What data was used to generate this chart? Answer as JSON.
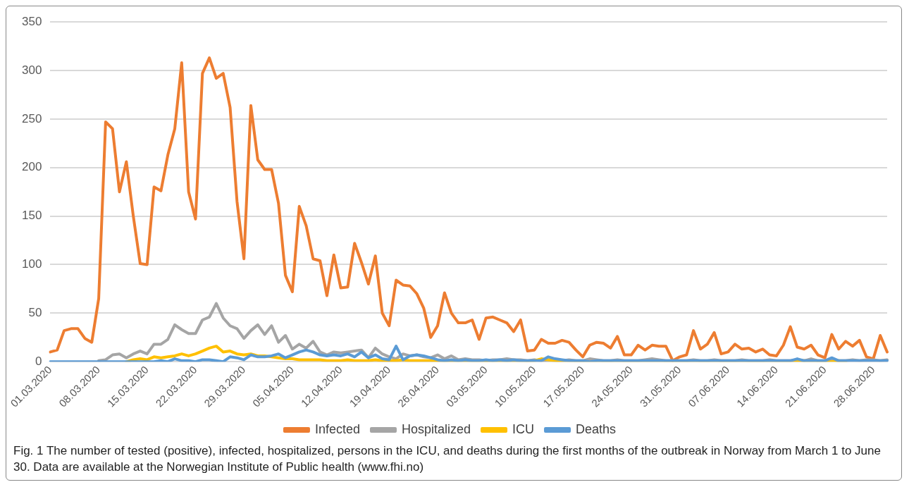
{
  "chart_data": {
    "type": "line",
    "categories": [
      "01.03.2020",
      null,
      null,
      null,
      null,
      null,
      null,
      "08.03.2020",
      null,
      null,
      null,
      null,
      null,
      null,
      "15.03.2020",
      null,
      null,
      null,
      null,
      null,
      null,
      "22.03.2020",
      null,
      null,
      null,
      null,
      null,
      null,
      "29.03.2020",
      null,
      null,
      null,
      null,
      null,
      null,
      "05.04.2020",
      null,
      null,
      null,
      null,
      null,
      null,
      "12.04.2020",
      null,
      null,
      null,
      null,
      null,
      null,
      "19.04.2020",
      null,
      null,
      null,
      null,
      null,
      null,
      "26.04.2020",
      null,
      null,
      null,
      null,
      null,
      null,
      "03.05.2020",
      null,
      null,
      null,
      null,
      null,
      null,
      "10.05.2020",
      null,
      null,
      null,
      null,
      null,
      null,
      "17.05.2020",
      null,
      null,
      null,
      null,
      null,
      null,
      "24.05.2020",
      null,
      null,
      null,
      null,
      null,
      null,
      "31.05.2020",
      null,
      null,
      null,
      null,
      null,
      null,
      "07.06.2020",
      null,
      null,
      null,
      null,
      null,
      null,
      "14.06.2020",
      null,
      null,
      null,
      null,
      null,
      null,
      "21.06.2020",
      null,
      null,
      null,
      null,
      null,
      null,
      "28.06.2020",
      null,
      null
    ],
    "series": [
      {
        "name": "Infected",
        "color": "#ed7d31",
        "values": [
          10,
          12,
          32,
          34,
          34,
          24,
          20,
          65,
          247,
          240,
          175,
          206,
          150,
          101,
          100,
          180,
          176,
          213,
          240,
          308,
          175,
          147,
          297,
          313,
          292,
          297,
          262,
          165,
          106,
          264,
          208,
          198,
          198,
          163,
          89,
          72,
          160,
          140,
          106,
          104,
          68,
          110,
          76,
          77,
          122,
          102,
          80,
          109,
          50,
          37,
          84,
          79,
          78,
          70,
          55,
          25,
          37,
          71,
          50,
          40,
          40,
          43,
          23,
          45,
          46,
          43,
          40,
          31,
          43,
          11,
          12,
          23,
          19,
          19,
          22,
          20,
          12,
          5,
          17,
          20,
          19,
          14,
          26,
          7,
          7,
          17,
          12,
          17,
          16,
          16,
          1,
          5,
          7,
          32,
          13,
          18,
          30,
          8,
          10,
          18,
          13,
          14,
          10,
          13,
          7,
          6,
          17,
          36,
          15,
          13,
          17,
          7,
          4,
          28,
          13,
          21,
          16,
          22,
          5,
          3,
          27,
          10
        ]
      },
      {
        "name": "Hospitalized",
        "color": "#a5a5a5",
        "values": [
          null,
          null,
          null,
          null,
          null,
          null,
          null,
          1,
          2,
          7,
          8,
          4,
          8,
          11,
          8,
          18,
          18,
          23,
          38,
          33,
          29,
          29,
          43,
          46,
          60,
          45,
          37,
          34,
          24,
          32,
          38,
          28,
          37,
          20,
          27,
          13,
          18,
          14,
          21,
          10,
          7,
          10,
          9,
          10,
          11,
          12,
          4,
          14,
          8,
          5,
          3,
          8,
          6,
          7,
          5,
          4,
          7,
          3,
          6,
          2,
          3,
          2,
          2,
          1,
          2,
          2,
          3,
          2,
          2,
          1,
          2,
          1,
          2,
          1,
          1,
          2,
          1,
          1,
          3,
          2,
          1,
          1,
          2,
          1,
          1,
          1,
          2,
          3,
          2,
          1,
          1,
          1,
          1,
          2,
          1,
          1,
          2,
          1,
          1,
          1,
          2,
          1,
          1,
          1,
          2,
          1,
          1,
          1,
          2,
          1,
          3,
          1,
          1,
          2,
          1,
          1,
          2,
          1,
          2,
          2,
          1,
          2
        ]
      },
      {
        "name": "ICU",
        "color": "#ffc000",
        "values": [
          null,
          null,
          null,
          null,
          null,
          null,
          null,
          null,
          null,
          null,
          null,
          0,
          2,
          3,
          2,
          5,
          4,
          5,
          6,
          8,
          6,
          8,
          11,
          14,
          16,
          10,
          11,
          8,
          7,
          8,
          6,
          6,
          5,
          4,
          3,
          3,
          2,
          2,
          2,
          2,
          1,
          1,
          1,
          2,
          1,
          1,
          1,
          2,
          1,
          1,
          1,
          2,
          1,
          1,
          1,
          1,
          0,
          0,
          0,
          0,
          0,
          0,
          0,
          0,
          0,
          0,
          0,
          0,
          0,
          0,
          1,
          3,
          2,
          1,
          0,
          0,
          0,
          0,
          0,
          0,
          0,
          0,
          0,
          0,
          0,
          0,
          0,
          0,
          0,
          0,
          0,
          0,
          0,
          0,
          0,
          0,
          0,
          0,
          0,
          0,
          0,
          0,
          0,
          0,
          0,
          0,
          0,
          0,
          0,
          1,
          0,
          0,
          0,
          0,
          1,
          0,
          null,
          null,
          null,
          null,
          null,
          null
        ]
      },
      {
        "name": "Deaths",
        "color": "#5b9bd5",
        "values": [
          0,
          0,
          0,
          0,
          0,
          0,
          0,
          0,
          0,
          0,
          0,
          0,
          0,
          0,
          0,
          0,
          1,
          0,
          3,
          1,
          1,
          0,
          2,
          2,
          1,
          0,
          5,
          4,
          2,
          7,
          5,
          5,
          6,
          8,
          4,
          7,
          10,
          12,
          10,
          7,
          6,
          7,
          6,
          8,
          5,
          10,
          4,
          7,
          3,
          2,
          16,
          2,
          6,
          7,
          6,
          4,
          2,
          1,
          2,
          1,
          2,
          1,
          1,
          2,
          1,
          2,
          1,
          2,
          1,
          1,
          1,
          1,
          5,
          3,
          2,
          1,
          1,
          1,
          0,
          1,
          1,
          1,
          1,
          1,
          1,
          1,
          1,
          1,
          1,
          1,
          1,
          1,
          1,
          1,
          1,
          1,
          1,
          1,
          1,
          1,
          1,
          1,
          1,
          1,
          1,
          1,
          1,
          1,
          3,
          1,
          1,
          1,
          1,
          4,
          1,
          1,
          1,
          1,
          1,
          1,
          1,
          1
        ]
      }
    ],
    "ylim": [
      0,
      350
    ],
    "yticks": [
      0,
      50,
      100,
      150,
      200,
      250,
      300,
      350
    ],
    "grid": "y",
    "legend": "bottom",
    "marker": "none",
    "line_style": "solid",
    "annotations": [
      "Fig. 1 The number of tested (positive), infected, hospitalized, persons in the ICU, and deaths during the first months of the outbreak in Norway from March 1 to June 30. Data are available at the Norwegian Institute of Public health (www.fhi.no)"
    ]
  }
}
